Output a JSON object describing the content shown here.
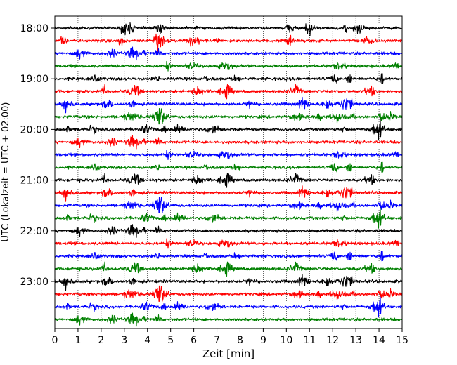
{
  "chart_data": {
    "type": "line",
    "title": "",
    "xlabel": "Zeit  [min]",
    "ylabel": "UTC (Lokalzeit = UTC + 02:00)",
    "xlim": [
      0,
      15
    ],
    "x_ticks": [
      0,
      1,
      2,
      3,
      4,
      5,
      6,
      7,
      8,
      9,
      10,
      11,
      12,
      13,
      14,
      15
    ],
    "x_tick_labels": [
      "0",
      "1",
      "2",
      "3",
      "4",
      "5",
      "6",
      "7",
      "8",
      "9",
      "10",
      "11",
      "12",
      "13",
      "14",
      "15"
    ],
    "y_tick_labels": [
      "18:00",
      "19:00",
      "20:00",
      "21:00",
      "22:00",
      "23:00"
    ],
    "vertical_grid": true,
    "vertical_grid_style": "dotted",
    "trace_minutes": 15,
    "trace_colors": [
      "#000000",
      "#ff0000",
      "#0000ff",
      "#008000"
    ],
    "traces": [
      {
        "start": "18:00",
        "color": "#000000"
      },
      {
        "start": "18:15",
        "color": "#ff0000"
      },
      {
        "start": "18:30",
        "color": "#0000ff"
      },
      {
        "start": "18:45",
        "color": "#008000"
      },
      {
        "start": "19:00",
        "color": "#000000"
      },
      {
        "start": "19:15",
        "color": "#ff0000"
      },
      {
        "start": "19:30",
        "color": "#0000ff"
      },
      {
        "start": "19:45",
        "color": "#008000"
      },
      {
        "start": "20:00",
        "color": "#000000"
      },
      {
        "start": "20:15",
        "color": "#ff0000"
      },
      {
        "start": "20:30",
        "color": "#0000ff"
      },
      {
        "start": "20:45",
        "color": "#008000"
      },
      {
        "start": "21:00",
        "color": "#000000"
      },
      {
        "start": "21:15",
        "color": "#ff0000"
      },
      {
        "start": "21:30",
        "color": "#0000ff"
      },
      {
        "start": "21:45",
        "color": "#008000"
      },
      {
        "start": "22:00",
        "color": "#000000"
      },
      {
        "start": "22:15",
        "color": "#ff0000"
      },
      {
        "start": "22:30",
        "color": "#0000ff"
      },
      {
        "start": "22:45",
        "color": "#008000"
      },
      {
        "start": "23:00",
        "color": "#000000"
      },
      {
        "start": "23:15",
        "color": "#ff0000"
      },
      {
        "start": "23:30",
        "color": "#0000ff"
      },
      {
        "start": "23:45",
        "color": "#008000"
      }
    ]
  }
}
